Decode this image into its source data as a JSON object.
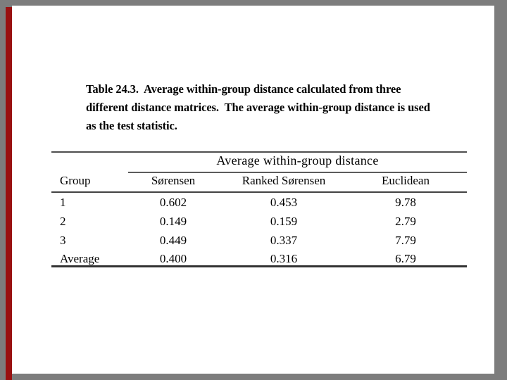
{
  "frame": {
    "canvas_color": "#7d7d7d",
    "slide_color": "#ffffff",
    "accent_bar_color": "#991111"
  },
  "caption": {
    "lines": [
      "Table 24.3.  Average within-group distance calculated from three",
      "different distance matrices.  The average within-group distance is used",
      "as the test statistic."
    ]
  },
  "table": {
    "spanner_header": "Average within-group distance",
    "columns": [
      "Group",
      "Sørensen",
      "Ranked Sørensen",
      "Euclidean"
    ],
    "rows": [
      [
        "1",
        "0.602",
        "0.453",
        "9.78"
      ],
      [
        "2",
        "0.149",
        "0.159",
        "2.79"
      ],
      [
        "3",
        "0.449",
        "0.337",
        "7.79"
      ],
      [
        "Average",
        "0.400",
        "0.316",
        "6.79"
      ]
    ]
  },
  "chart_data": {
    "type": "table",
    "title": "Table 24.3. Average within-group distance calculated from three different distance matrices. The average within-group distance is used as the test statistic.",
    "spanner": "Average within-group distance",
    "columns": [
      "Group",
      "Sørensen",
      "Ranked Sørensen",
      "Euclidean"
    ],
    "rows": [
      [
        "1",
        0.602,
        0.453,
        9.78
      ],
      [
        "2",
        0.149,
        0.159,
        2.79
      ],
      [
        "3",
        0.449,
        0.337,
        7.79
      ],
      [
        "Average",
        0.4,
        0.316,
        6.79
      ]
    ]
  }
}
